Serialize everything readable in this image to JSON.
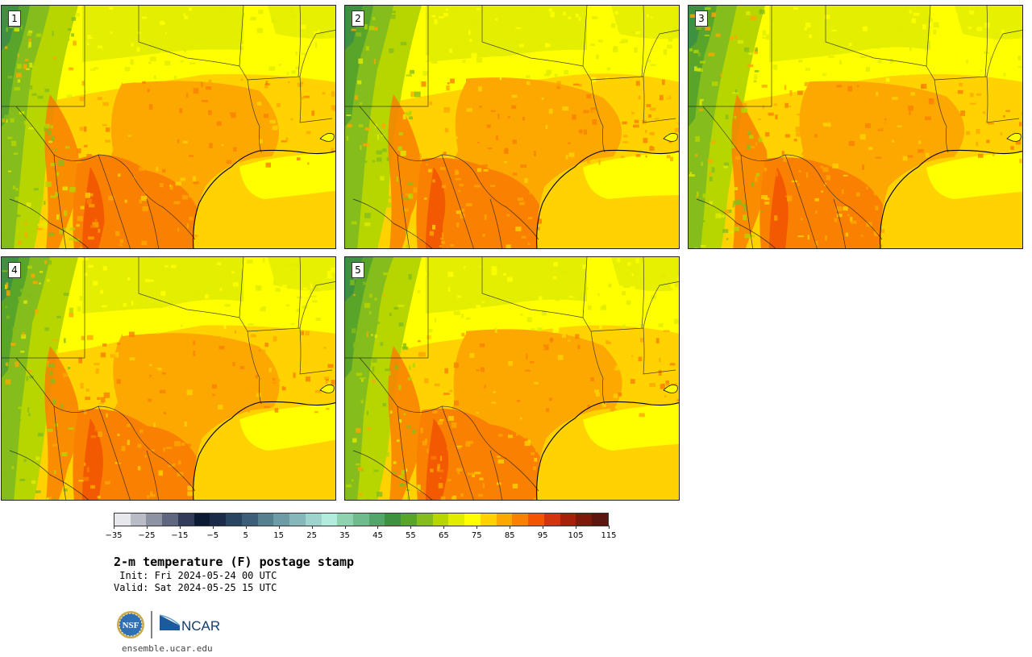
{
  "panels": [
    {
      "label": "1",
      "variant": 0
    },
    {
      "label": "2",
      "variant": 1
    },
    {
      "label": "3",
      "variant": 2
    },
    {
      "label": "4",
      "variant": 3
    },
    {
      "label": "5",
      "variant": 4
    }
  ],
  "colorbar": {
    "colors": [
      "#e6e8ec",
      "#b9bcc6",
      "#8e93a3",
      "#5f6680",
      "#333b5a",
      "#0d1a33",
      "#1a2c49",
      "#2a4561",
      "#3d5e78",
      "#55808f",
      "#6e9ca6",
      "#86b8bb",
      "#9ed4cd",
      "#b3ecdc",
      "#8ed2b0",
      "#6fbb8c",
      "#52a66a",
      "#3d9140",
      "#58a52a",
      "#84bd1c",
      "#b7d600",
      "#e1ec00",
      "#ffff00",
      "#ffd200",
      "#fca800",
      "#f98000",
      "#f25400",
      "#d23410",
      "#a8200c",
      "#7e1a0c",
      "#5a1810"
    ],
    "tick_labels": [
      "−35",
      "−25",
      "−15",
      "−5",
      "5",
      "15",
      "25",
      "35",
      "45",
      "55",
      "65",
      "75",
      "85",
      "95",
      "105",
      "115"
    ]
  },
  "title": "2-m temperature (F) postage stamp",
  "init_text": " Init: Fri 2024-05-24 00 UTC",
  "valid_text": "Valid: Sat 2024-05-25 15 UTC",
  "logos": {
    "nsf": "NSF",
    "ncar": "NCAR"
  },
  "site": "ensemble.ucar.edu"
}
